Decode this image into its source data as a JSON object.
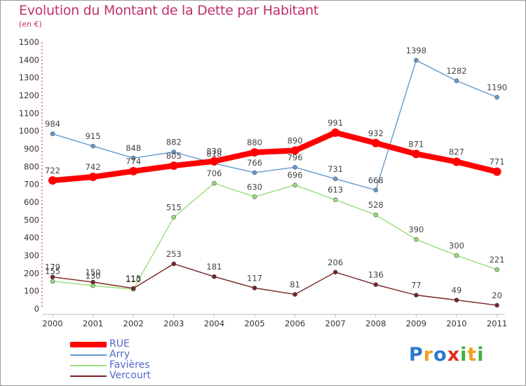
{
  "title": "Evolution du Montant de la Dette par Habitant",
  "unit": "(en €)",
  "chart_data": {
    "type": "line",
    "title": "Evolution du Montant de la Dette par Habitant",
    "ylabel": "(en €)",
    "xlabel": "",
    "ylim": [
      0,
      1500
    ],
    "yticks": [
      0,
      100,
      200,
      300,
      400,
      500,
      600,
      700,
      800,
      900,
      1000,
      1100,
      1200,
      1300,
      1400,
      1500
    ],
    "categories": [
      "2000",
      "2001",
      "2002",
      "2003",
      "2004",
      "2005",
      "2006",
      "2007",
      "2008",
      "2009",
      "2010",
      "2011"
    ],
    "series": [
      {
        "name": "RUE",
        "color": "#ff0000",
        "values": [
          722,
          742,
          774,
          805,
          830,
          880,
          890,
          991,
          932,
          871,
          827,
          771
        ]
      },
      {
        "name": "Arry",
        "color": "#6699cc",
        "values": [
          984,
          915,
          848,
          882,
          818,
          766,
          796,
          731,
          668,
          1398,
          1282,
          1190
        ]
      },
      {
        "name": "Favières",
        "color": "#99dd77",
        "values": [
          155,
          130,
          110,
          515,
          706,
          630,
          696,
          613,
          528,
          390,
          300,
          221
        ]
      },
      {
        "name": "Vercourt",
        "color": "#772222",
        "values": [
          179,
          150,
          115,
          253,
          181,
          117,
          81,
          206,
          136,
          77,
          49,
          20
        ]
      }
    ],
    "legend_position": "bottom-left"
  },
  "legend": [
    {
      "name": "RUE",
      "color": "#ff0000"
    },
    {
      "name": "Arry",
      "color": "#6699cc"
    },
    {
      "name": "Favières",
      "color": "#99dd77"
    },
    {
      "name": "Vercourt",
      "color": "#772222"
    }
  ],
  "logo": {
    "letters": [
      "P",
      "r",
      "o",
      "x",
      "i",
      "t",
      "i"
    ],
    "colors": [
      "#2a79d0",
      "#f0a020",
      "#2a79d0",
      "#e03020",
      "#40b040",
      "#f0a020",
      "#40b040"
    ]
  }
}
